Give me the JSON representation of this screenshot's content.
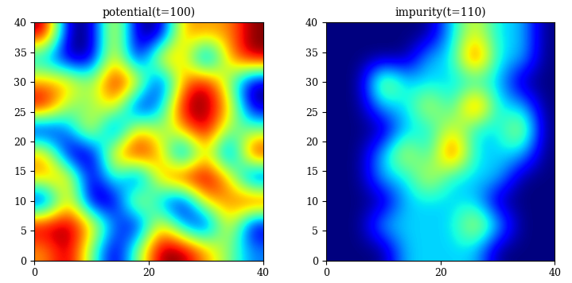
{
  "chart_data": [
    {
      "type": "heatmap",
      "title": "potential(t=100)",
      "xlim": [
        0,
        40
      ],
      "ylim": [
        0,
        40
      ],
      "xticks": [
        0,
        20,
        40
      ],
      "yticks": [
        0,
        5,
        10,
        15,
        20,
        25,
        30,
        35,
        40
      ],
      "color": "jet",
      "cells": [
        [
          1,
          2,
          0,
          -2,
          0,
          2,
          2,
          1,
          0,
          -1
        ],
        [
          2,
          2,
          1,
          -1,
          -2,
          1,
          -1,
          -2,
          1,
          -2
        ],
        [
          -2,
          1,
          -2,
          -2,
          1,
          -1,
          -2,
          1,
          1,
          2
        ],
        [
          1,
          1,
          -2,
          0,
          -2,
          1,
          2,
          2,
          1,
          -2
        ],
        [
          1,
          -2,
          -2,
          1,
          2,
          1,
          -2,
          1,
          -2,
          2
        ],
        [
          -2,
          -1,
          1,
          -2,
          1,
          0,
          1,
          2,
          0,
          0
        ],
        [
          2,
          0,
          0,
          1,
          -2,
          -1,
          2,
          2,
          1,
          -2
        ],
        [
          1,
          1,
          0,
          2,
          1,
          -2,
          1,
          2,
          0,
          -2
        ],
        [
          -1,
          -2,
          -2,
          1,
          -2,
          1,
          1,
          -2,
          1,
          2
        ],
        [
          2,
          -2,
          -2,
          1,
          -2,
          -2,
          1,
          1,
          1,
          2
        ]
      ]
    },
    {
      "type": "heatmap",
      "title": "impurity(t=110)",
      "xlim": [
        0,
        40
      ],
      "ylim": [
        0,
        40
      ],
      "xticks": [
        0,
        20,
        40
      ],
      "yticks": [
        0,
        5,
        10,
        15,
        20,
        25,
        30,
        35,
        40
      ],
      "color": "jet",
      "cells": [
        [
          0,
          0,
          0,
          1,
          1,
          1,
          1,
          0,
          0,
          0
        ],
        [
          0,
          0,
          1,
          1,
          1,
          1,
          2,
          1,
          0,
          0
        ],
        [
          0,
          0,
          0,
          1,
          1,
          1,
          1,
          0,
          0,
          0
        ],
        [
          0,
          0,
          1,
          1,
          2,
          1,
          1,
          1,
          0,
          0
        ],
        [
          0,
          0,
          1,
          2,
          1,
          3,
          1,
          1,
          1,
          0
        ],
        [
          0,
          0,
          0,
          1,
          1,
          2,
          1,
          1,
          2,
          0
        ],
        [
          0,
          0,
          1,
          1,
          2,
          1,
          3,
          1,
          1,
          0
        ],
        [
          0,
          0,
          2,
          1,
          1,
          1,
          1,
          1,
          0,
          0
        ],
        [
          0,
          0,
          0,
          0,
          1,
          1,
          3,
          1,
          1,
          0
        ],
        [
          0,
          0,
          0,
          0,
          0,
          1,
          2,
          1,
          1,
          0
        ]
      ]
    }
  ]
}
